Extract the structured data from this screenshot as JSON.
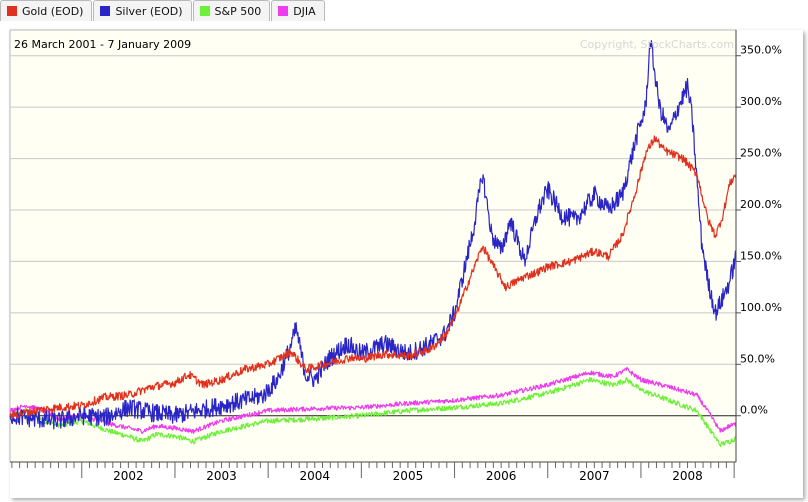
{
  "legend": [
    {
      "label": "Gold (EOD)",
      "color": "#e0301e"
    },
    {
      "label": "Silver (EOD)",
      "color": "#2a25c6"
    },
    {
      "label": "S&P 500",
      "color": "#6ef03a"
    },
    {
      "label": "DJIA",
      "color": "#ee3cf0"
    }
  ],
  "date_range": "26 March 2001 - 7 January 2009",
  "copyright": "Copyright, StockCharts.com",
  "chart_data": {
    "type": "line",
    "title": "26 March 2001 - 7 January 2009",
    "x_ticks": [
      "2002",
      "2003",
      "2004",
      "2005",
      "2006",
      "2007",
      "2008"
    ],
    "y_ticks": [
      "350.0%",
      "300.0%",
      "250.0%",
      "200.0%",
      "150.0%",
      "100.0%",
      "50.0%",
      "0.0%"
    ],
    "xlim": [
      2001.23,
      2009.02
    ],
    "ylim": [
      -45,
      375
    ],
    "grid": true,
    "series": [
      {
        "name": "Gold (EOD)",
        "color": "#e0301e",
        "points": [
          [
            2001.23,
            0
          ],
          [
            2001.5,
            5
          ],
          [
            2001.75,
            8
          ],
          [
            2002.0,
            10
          ],
          [
            2002.25,
            18
          ],
          [
            2002.5,
            20
          ],
          [
            2002.75,
            28
          ],
          [
            2003.0,
            32
          ],
          [
            2003.15,
            40
          ],
          [
            2003.3,
            30
          ],
          [
            2003.5,
            35
          ],
          [
            2003.75,
            45
          ],
          [
            2004.0,
            50
          ],
          [
            2004.1,
            55
          ],
          [
            2004.25,
            62
          ],
          [
            2004.4,
            45
          ],
          [
            2004.6,
            50
          ],
          [
            2004.9,
            57
          ],
          [
            2005.0,
            55
          ],
          [
            2005.25,
            60
          ],
          [
            2005.5,
            58
          ],
          [
            2005.75,
            65
          ],
          [
            2005.9,
            78
          ],
          [
            2006.0,
            95
          ],
          [
            2006.15,
            130
          ],
          [
            2006.3,
            165
          ],
          [
            2006.45,
            140
          ],
          [
            2006.55,
            125
          ],
          [
            2006.75,
            135
          ],
          [
            2006.9,
            140
          ],
          [
            2007.0,
            145
          ],
          [
            2007.25,
            150
          ],
          [
            2007.5,
            160
          ],
          [
            2007.65,
            155
          ],
          [
            2007.8,
            175
          ],
          [
            2007.95,
            220
          ],
          [
            2008.05,
            255
          ],
          [
            2008.15,
            270
          ],
          [
            2008.25,
            258
          ],
          [
            2008.45,
            250
          ],
          [
            2008.6,
            235
          ],
          [
            2008.72,
            190
          ],
          [
            2008.8,
            175
          ],
          [
            2008.88,
            195
          ],
          [
            2008.95,
            225
          ],
          [
            2009.02,
            235
          ]
        ]
      },
      {
        "name": "Silver (EOD)",
        "color": "#2a25c6",
        "points": [
          [
            2001.23,
            0
          ],
          [
            2001.5,
            -3
          ],
          [
            2001.75,
            -5
          ],
          [
            2002.0,
            0
          ],
          [
            2002.25,
            -2
          ],
          [
            2002.5,
            8
          ],
          [
            2002.75,
            3
          ],
          [
            2003.0,
            0
          ],
          [
            2003.25,
            5
          ],
          [
            2003.5,
            10
          ],
          [
            2003.75,
            15
          ],
          [
            2003.95,
            20
          ],
          [
            2004.1,
            35
          ],
          [
            2004.25,
            70
          ],
          [
            2004.3,
            85
          ],
          [
            2004.4,
            40
          ],
          [
            2004.5,
            35
          ],
          [
            2004.65,
            55
          ],
          [
            2004.85,
            70
          ],
          [
            2005.0,
            60
          ],
          [
            2005.25,
            70
          ],
          [
            2005.5,
            60
          ],
          [
            2005.75,
            70
          ],
          [
            2005.9,
            80
          ],
          [
            2006.0,
            100
          ],
          [
            2006.1,
            140
          ],
          [
            2006.2,
            180
          ],
          [
            2006.3,
            235
          ],
          [
            2006.4,
            175
          ],
          [
            2006.5,
            160
          ],
          [
            2006.6,
            190
          ],
          [
            2006.75,
            150
          ],
          [
            2006.9,
            200
          ],
          [
            2007.0,
            220
          ],
          [
            2007.15,
            195
          ],
          [
            2007.3,
            190
          ],
          [
            2007.5,
            215
          ],
          [
            2007.65,
            200
          ],
          [
            2007.8,
            215
          ],
          [
            2007.95,
            270
          ],
          [
            2008.05,
            300
          ],
          [
            2008.1,
            365
          ],
          [
            2008.2,
            300
          ],
          [
            2008.3,
            275
          ],
          [
            2008.4,
            300
          ],
          [
            2008.5,
            320
          ],
          [
            2008.55,
            290
          ],
          [
            2008.65,
            170
          ],
          [
            2008.72,
            130
          ],
          [
            2008.8,
            100
          ],
          [
            2008.88,
            115
          ],
          [
            2008.95,
            130
          ],
          [
            2009.02,
            155
          ]
        ]
      },
      {
        "name": "S&P 500",
        "color": "#6ef03a",
        "points": [
          [
            2001.23,
            0
          ],
          [
            2001.4,
            5
          ],
          [
            2001.6,
            -5
          ],
          [
            2001.75,
            -10
          ],
          [
            2002.0,
            -5
          ],
          [
            2002.3,
            -15
          ],
          [
            2002.5,
            -20
          ],
          [
            2002.65,
            -25
          ],
          [
            2002.8,
            -18
          ],
          [
            2003.0,
            -20
          ],
          [
            2003.2,
            -25
          ],
          [
            2003.5,
            -15
          ],
          [
            2003.75,
            -10
          ],
          [
            2004.0,
            -5
          ],
          [
            2004.5,
            -3
          ],
          [
            2005.0,
            0
          ],
          [
            2005.5,
            5
          ],
          [
            2006.0,
            8
          ],
          [
            2006.5,
            12
          ],
          [
            2007.0,
            22
          ],
          [
            2007.45,
            35
          ],
          [
            2007.7,
            30
          ],
          [
            2007.85,
            35
          ],
          [
            2008.0,
            25
          ],
          [
            2008.3,
            15
          ],
          [
            2008.6,
            5
          ],
          [
            2008.75,
            -15
          ],
          [
            2008.85,
            -28
          ],
          [
            2008.95,
            -25
          ],
          [
            2009.02,
            -22
          ]
        ]
      },
      {
        "name": "DJIA",
        "color": "#ee3cf0",
        "points": [
          [
            2001.23,
            5
          ],
          [
            2001.4,
            10
          ],
          [
            2001.6,
            5
          ],
          [
            2001.75,
            -3
          ],
          [
            2002.0,
            0
          ],
          [
            2002.3,
            -8
          ],
          [
            2002.5,
            -12
          ],
          [
            2002.65,
            -15
          ],
          [
            2002.8,
            -10
          ],
          [
            2003.0,
            -12
          ],
          [
            2003.2,
            -15
          ],
          [
            2003.5,
            -5
          ],
          [
            2003.75,
            0
          ],
          [
            2004.0,
            5
          ],
          [
            2004.5,
            7
          ],
          [
            2005.0,
            8
          ],
          [
            2005.5,
            12
          ],
          [
            2006.0,
            15
          ],
          [
            2006.5,
            20
          ],
          [
            2007.0,
            30
          ],
          [
            2007.45,
            42
          ],
          [
            2007.7,
            38
          ],
          [
            2007.85,
            45
          ],
          [
            2008.0,
            35
          ],
          [
            2008.3,
            28
          ],
          [
            2008.6,
            20
          ],
          [
            2008.75,
            0
          ],
          [
            2008.85,
            -15
          ],
          [
            2008.95,
            -10
          ],
          [
            2009.02,
            -8
          ]
        ]
      }
    ]
  }
}
